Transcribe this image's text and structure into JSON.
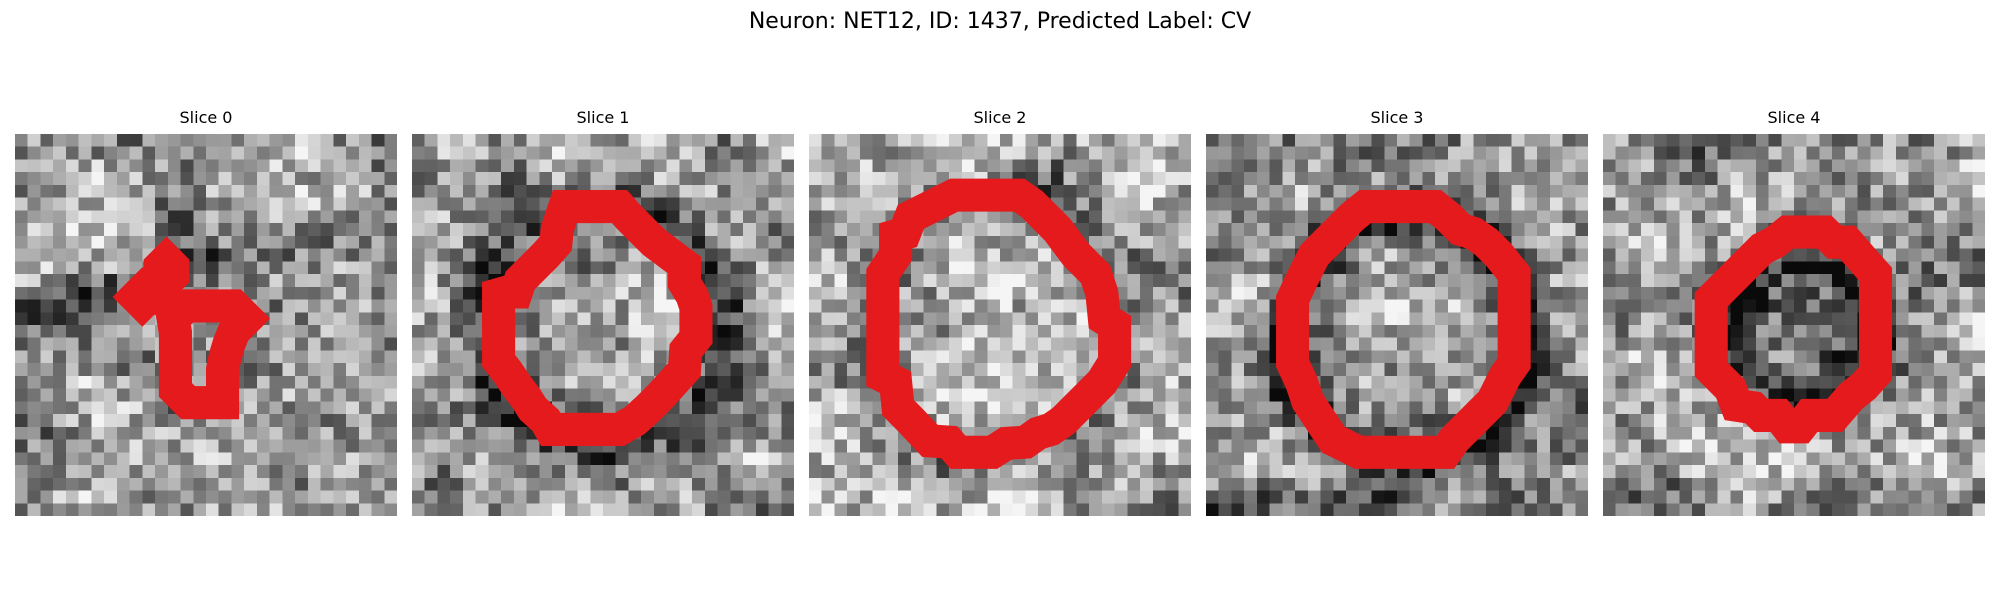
{
  "figure": {
    "title": "Neuron: NET12, ID: 1437, Predicted Label: CV",
    "contour_color": "#e41a1c",
    "grid_size": 30
  },
  "slices": [
    {
      "title": "Slice 0",
      "seed": 17,
      "structure": "slice0"
    },
    {
      "title": "Slice 1",
      "seed": 29,
      "structure": "ring-dark"
    },
    {
      "title": "Slice 2",
      "seed": 41,
      "structure": "ring-light"
    },
    {
      "title": "Slice 3",
      "seed": 53,
      "structure": "ring-dark-strong"
    },
    {
      "title": "Slice 4",
      "seed": 67,
      "structure": "small-ring"
    }
  ]
}
